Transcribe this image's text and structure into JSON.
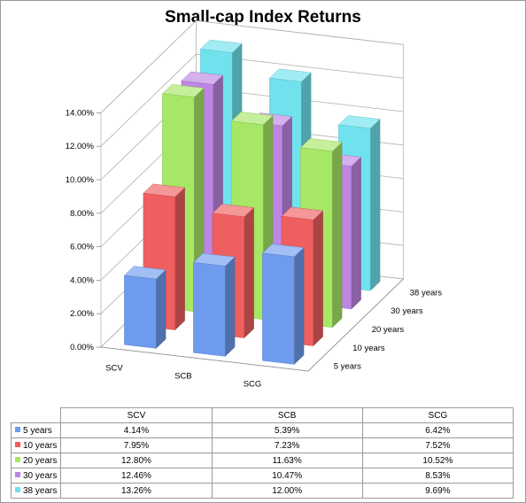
{
  "chart_data": {
    "type": "bar",
    "subtype": "3d-clustered-column",
    "title": "Small-cap Index Returns",
    "categories": [
      "SCV",
      "SCB",
      "SCG"
    ],
    "series": [
      {
        "name": "5 years",
        "values": [
          4.14,
          5.39,
          6.42
        ],
        "color": "#6f9bef",
        "labels": [
          "4.14%",
          "5.39%",
          "6.42%"
        ]
      },
      {
        "name": "10 years",
        "values": [
          7.95,
          7.23,
          7.52
        ],
        "color": "#ef5f5f",
        "labels": [
          "7.95%",
          "7.23%",
          "7.52%"
        ]
      },
      {
        "name": "20 years",
        "values": [
          12.8,
          11.63,
          10.52
        ],
        "color": "#a6e765",
        "labels": [
          "12.80%",
          "11.63%",
          "10.52%"
        ]
      },
      {
        "name": "30 years",
        "values": [
          12.46,
          10.47,
          8.53
        ],
        "color": "#bd86e3",
        "labels": [
          "12.46%",
          "10.47%",
          "8.53%"
        ]
      },
      {
        "name": "38 years",
        "values": [
          13.26,
          12.0,
          9.69
        ],
        "color": "#6fe2ee",
        "labels": [
          "13.26%",
          "12.00%",
          "9.69%"
        ]
      }
    ],
    "y_ticks": [
      "0.00%",
      "2.00%",
      "4.00%",
      "6.00%",
      "8.00%",
      "10.00%",
      "12.00%",
      "14.00%"
    ],
    "ylim": [
      0,
      14
    ],
    "grid": true,
    "legend": "data-table"
  }
}
